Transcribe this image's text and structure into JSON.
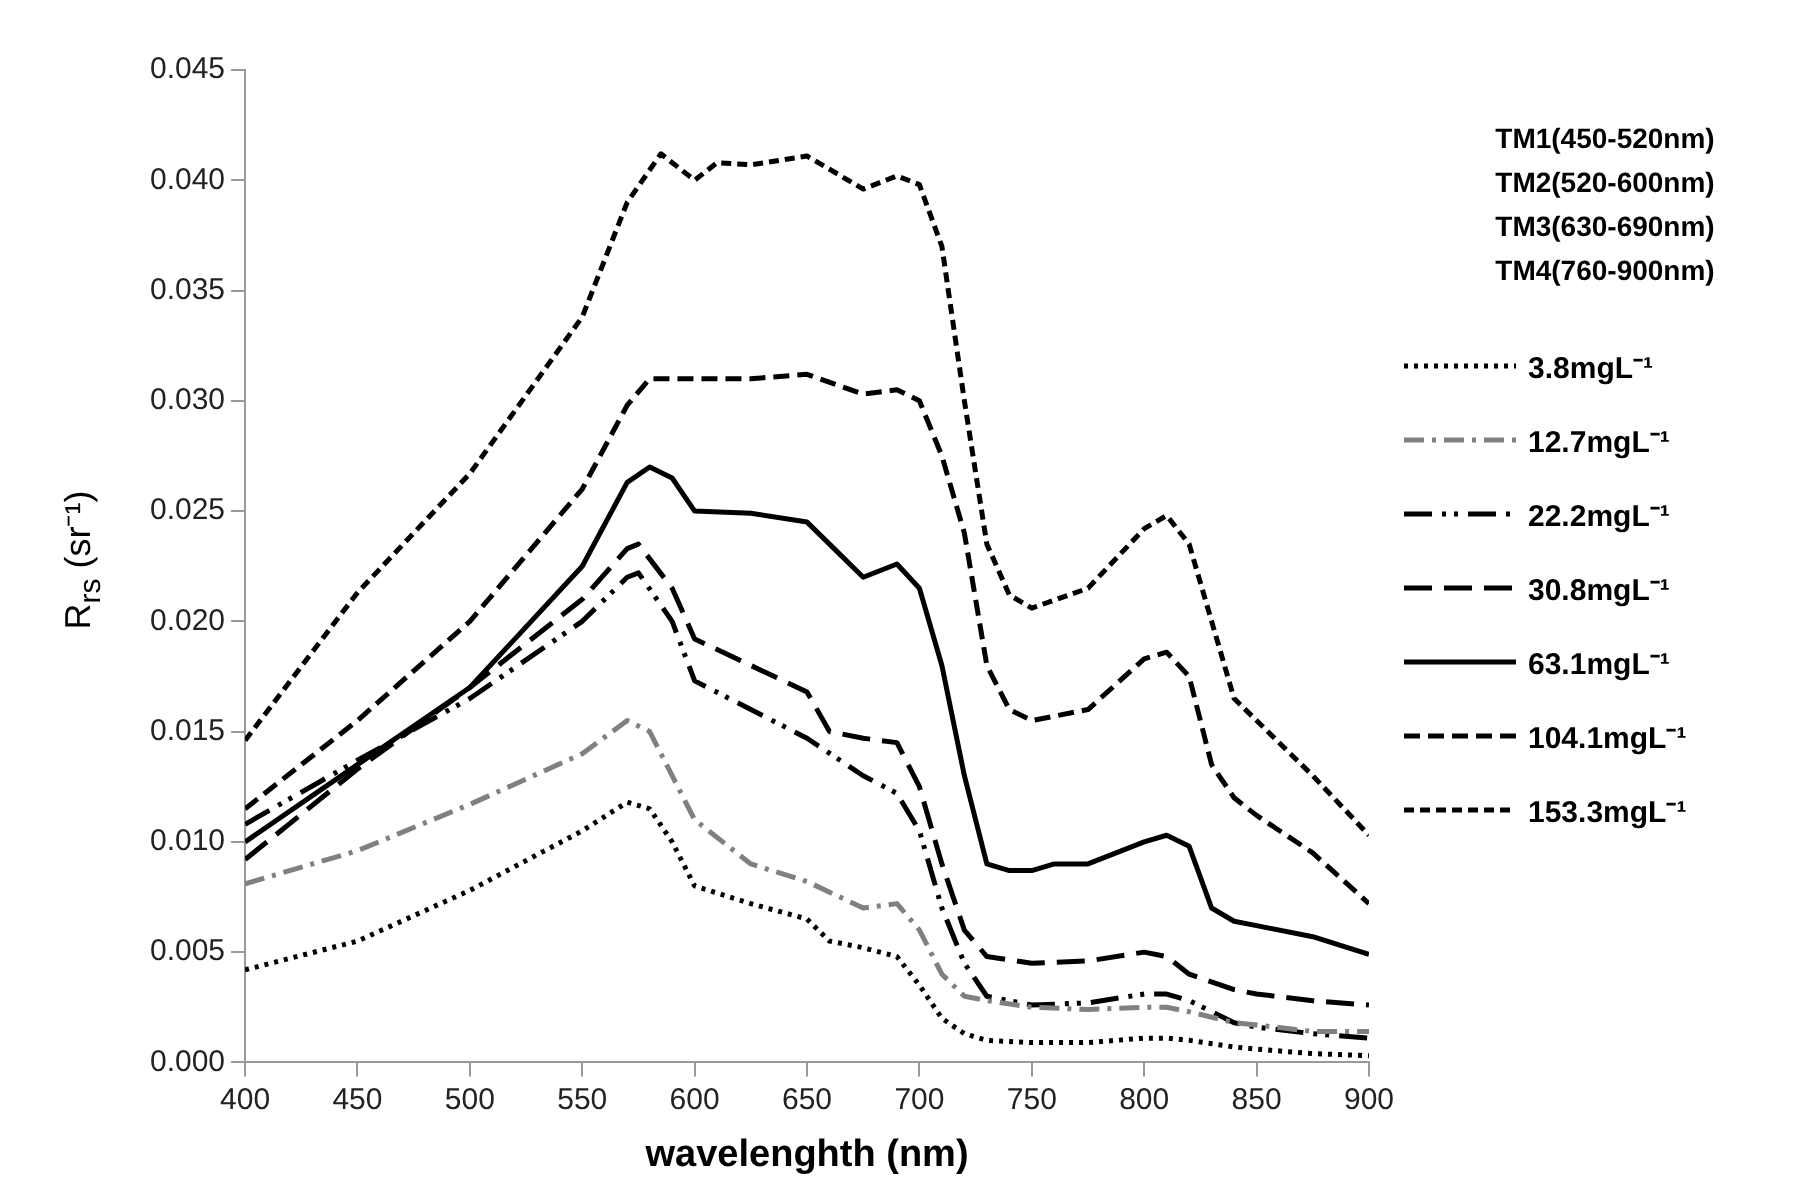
{
  "chart_data": {
    "type": "line",
    "xlabel": "wavelenghth (nm)",
    "ylabel": "R$_{rs}$ (sr⁻¹)",
    "annotations": [
      "TM1(450-520nm)",
      "TM2(520-600nm)",
      "TM3(630-690nm)",
      "TM4(760-900nm)"
    ],
    "xlim": [
      400,
      900
    ],
    "xticks": [
      400,
      450,
      500,
      550,
      600,
      650,
      700,
      750,
      800,
      850,
      900
    ],
    "ylim": [
      0,
      0.045
    ],
    "yticks": [
      {
        "value": 0,
        "label": "0.000"
      },
      {
        "value": 0.005,
        "label": "0.005"
      },
      {
        "value": 0.01,
        "label": "0.010"
      },
      {
        "value": 0.015,
        "label": "0.015"
      },
      {
        "value": 0.02,
        "label": "0.020"
      },
      {
        "value": 0.025,
        "label": "0.025"
      },
      {
        "value": 0.03,
        "label": "0.030"
      },
      {
        "value": 0.035,
        "label": "0.035"
      },
      {
        "value": 0.04,
        "label": "0.040"
      },
      {
        "value": 0.045,
        "label": "0.045"
      }
    ],
    "grid": false,
    "legend": "right",
    "marker": "none",
    "series": [
      {
        "name": "3.8mgL⁻¹",
        "color": "#000000",
        "line_style": "dotted",
        "x": [
          400,
          450,
          500,
          550,
          570,
          580,
          590,
          600,
          625,
          650,
          660,
          675,
          690,
          700,
          710,
          720,
          730,
          750,
          775,
          800,
          810,
          820,
          840,
          850,
          875,
          900
        ],
        "values": [
          0.0042,
          0.0055,
          0.0078,
          0.0105,
          0.0118,
          0.0115,
          0.01,
          0.008,
          0.0072,
          0.0065,
          0.0055,
          0.0052,
          0.0048,
          0.0035,
          0.002,
          0.0013,
          0.001,
          0.0009,
          0.0009,
          0.0011,
          0.0011,
          0.001,
          0.0007,
          0.0006,
          0.0004,
          0.0003
        ]
      },
      {
        "name": "12.7mgL⁻¹",
        "color": "#808080",
        "line_style": "dashed",
        "x": [
          400,
          450,
          500,
          550,
          570,
          580,
          590,
          600,
          625,
          650,
          675,
          690,
          700,
          710,
          720,
          730,
          750,
          775,
          800,
          810,
          820,
          840,
          850,
          875,
          900
        ],
        "values": [
          0.0081,
          0.0096,
          0.0117,
          0.014,
          0.0155,
          0.015,
          0.013,
          0.011,
          0.009,
          0.0082,
          0.007,
          0.0072,
          0.006,
          0.004,
          0.003,
          0.0028,
          0.0025,
          0.0024,
          0.0025,
          0.0025,
          0.0023,
          0.0018,
          0.0017,
          0.0014,
          0.0014
        ]
      },
      {
        "name": "22.2mgL⁻¹",
        "color": "#000000",
        "line_style": "dashed",
        "x": [
          400,
          450,
          500,
          550,
          570,
          575,
          590,
          600,
          625,
          650,
          675,
          690,
          700,
          710,
          720,
          730,
          750,
          775,
          800,
          810,
          820,
          840,
          850,
          875,
          900
        ],
        "values": [
          0.0108,
          0.0137,
          0.0165,
          0.02,
          0.022,
          0.0222,
          0.02,
          0.0173,
          0.016,
          0.0147,
          0.013,
          0.0122,
          0.0105,
          0.007,
          0.0045,
          0.003,
          0.0026,
          0.0027,
          0.0031,
          0.0031,
          0.0028,
          0.0018,
          0.0016,
          0.0013,
          0.0011
        ]
      },
      {
        "name": "30.8mgL⁻¹",
        "color": "#000000",
        "line_style": "dashed",
        "x": [
          400,
          450,
          500,
          550,
          570,
          575,
          590,
          600,
          625,
          650,
          660,
          675,
          690,
          700,
          710,
          720,
          730,
          750,
          775,
          800,
          810,
          820,
          840,
          850,
          875,
          900
        ],
        "values": [
          0.0092,
          0.0133,
          0.017,
          0.021,
          0.0233,
          0.0235,
          0.0215,
          0.0192,
          0.018,
          0.0168,
          0.015,
          0.0147,
          0.0145,
          0.0125,
          0.009,
          0.006,
          0.0048,
          0.0045,
          0.0046,
          0.005,
          0.0048,
          0.004,
          0.0033,
          0.0031,
          0.0028,
          0.0026
        ]
      },
      {
        "name": "63.1mgL⁻¹",
        "color": "#000000",
        "line_style": "solid",
        "x": [
          400,
          450,
          500,
          550,
          570,
          580,
          590,
          600,
          625,
          650,
          660,
          675,
          690,
          700,
          710,
          720,
          730,
          740,
          750,
          760,
          775,
          800,
          810,
          820,
          830,
          840,
          850,
          875,
          900
        ],
        "values": [
          0.01,
          0.0135,
          0.017,
          0.0225,
          0.0263,
          0.027,
          0.0265,
          0.025,
          0.0249,
          0.0245,
          0.0235,
          0.022,
          0.0226,
          0.0215,
          0.018,
          0.013,
          0.009,
          0.0087,
          0.0087,
          0.009,
          0.009,
          0.01,
          0.0103,
          0.0098,
          0.007,
          0.0064,
          0.0062,
          0.0057,
          0.0049
        ]
      },
      {
        "name": "104.1mgL⁻¹",
        "color": "#000000",
        "line_style": "dashed",
        "x": [
          400,
          450,
          500,
          550,
          570,
          580,
          600,
          625,
          650,
          675,
          690,
          700,
          710,
          720,
          730,
          740,
          750,
          775,
          800,
          810,
          820,
          830,
          840,
          850,
          875,
          900
        ],
        "values": [
          0.0115,
          0.0155,
          0.02,
          0.026,
          0.0298,
          0.031,
          0.031,
          0.031,
          0.0312,
          0.0303,
          0.0305,
          0.03,
          0.0275,
          0.024,
          0.018,
          0.016,
          0.0155,
          0.016,
          0.0183,
          0.0186,
          0.0175,
          0.0135,
          0.012,
          0.0112,
          0.0095,
          0.0072
        ]
      },
      {
        "name": "153.3mgL⁻¹",
        "color": "#000000",
        "line_style": "dashed",
        "x": [
          400,
          450,
          500,
          550,
          570,
          585,
          600,
          610,
          625,
          650,
          675,
          690,
          700,
          710,
          720,
          730,
          740,
          750,
          775,
          800,
          810,
          820,
          830,
          840,
          850,
          875,
          900
        ],
        "values": [
          0.0146,
          0.0213,
          0.0267,
          0.0338,
          0.039,
          0.0412,
          0.04,
          0.0408,
          0.0407,
          0.0411,
          0.0396,
          0.0402,
          0.0398,
          0.037,
          0.03,
          0.0235,
          0.0212,
          0.0206,
          0.0215,
          0.0242,
          0.0248,
          0.0235,
          0.02,
          0.0165,
          0.0155,
          0.013,
          0.0103
        ]
      }
    ]
  }
}
